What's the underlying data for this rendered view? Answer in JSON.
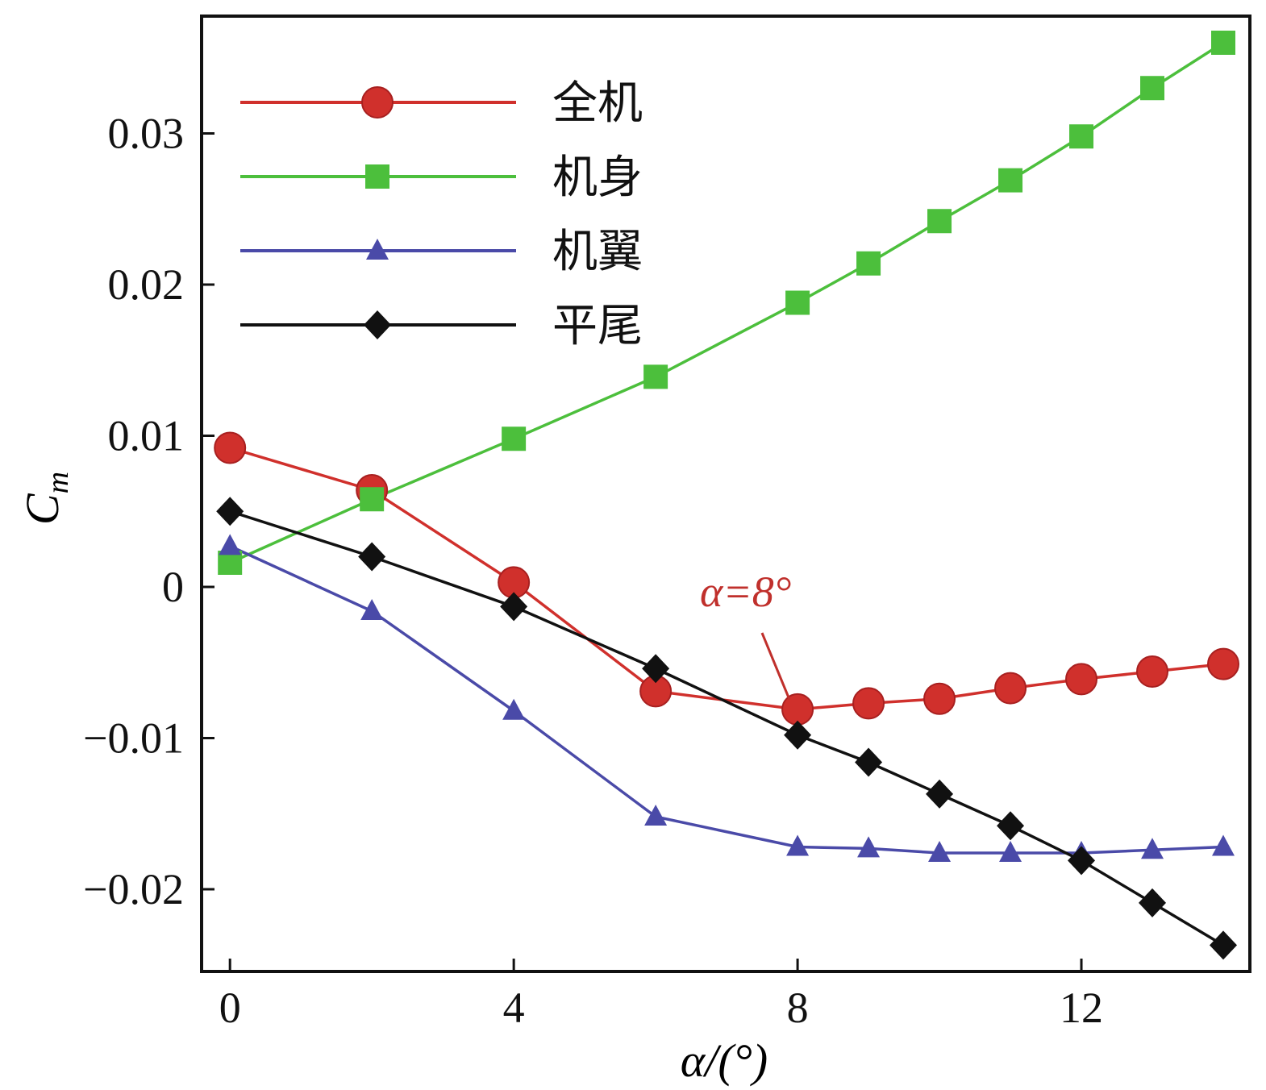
{
  "chart_data": {
    "type": "line",
    "title": "",
    "xlabel": "α/(°)",
    "ylabel_main": "C",
    "ylabel_sub": "m",
    "xlim": [
      -0.4,
      14.375
    ],
    "ylim": [
      -0.02544,
      0.03776
    ],
    "xticks": [
      0,
      4,
      8,
      12
    ],
    "xtick_labels": [
      "0",
      "4",
      "8",
      "12"
    ],
    "yticks": [
      -0.02,
      -0.01,
      0,
      0.01,
      0.02,
      0.03
    ],
    "ytick_labels": [
      "−0.02",
      "−0.01",
      "0",
      "0.01",
      "0.02",
      "0.03"
    ],
    "grid": false,
    "legend_position": "top-left",
    "x": [
      0,
      2,
      4,
      6,
      8,
      9,
      10,
      11,
      12,
      13,
      14
    ],
    "series": [
      {
        "name": "全机",
        "color": "#d0302c",
        "marker": "circle",
        "values": [
          0.0092,
          0.0064,
          0.0003,
          -0.0069,
          -0.0081,
          -0.0077,
          -0.0074,
          -0.0067,
          -0.0061,
          -0.0056,
          -0.0051
        ]
      },
      {
        "name": "机身",
        "color": "#4cbf3c",
        "marker": "square",
        "values": [
          0.0016,
          0.0058,
          0.0098,
          0.0139,
          0.0188,
          0.0214,
          0.0242,
          0.0269,
          0.0298,
          0.033,
          0.036
        ]
      },
      {
        "name": "机翼",
        "color": "#4a4aa8",
        "marker": "triangle",
        "values": [
          0.0027,
          -0.0016,
          -0.0082,
          -0.0152,
          -0.0172,
          -0.0173,
          -0.0176,
          -0.0176,
          -0.0176,
          -0.0174,
          -0.0172
        ]
      },
      {
        "name": "平尾",
        "color": "#111111",
        "marker": "diamond",
        "values": [
          0.005,
          0.002,
          -0.0013,
          -0.0054,
          -0.0098,
          -0.0116,
          -0.0137,
          -0.0158,
          -0.0181,
          -0.0209,
          -0.0237
        ]
      }
    ],
    "annotation": {
      "text": "α=8°",
      "x": 8,
      "y": -0.0081,
      "color": "#c0302c"
    }
  }
}
